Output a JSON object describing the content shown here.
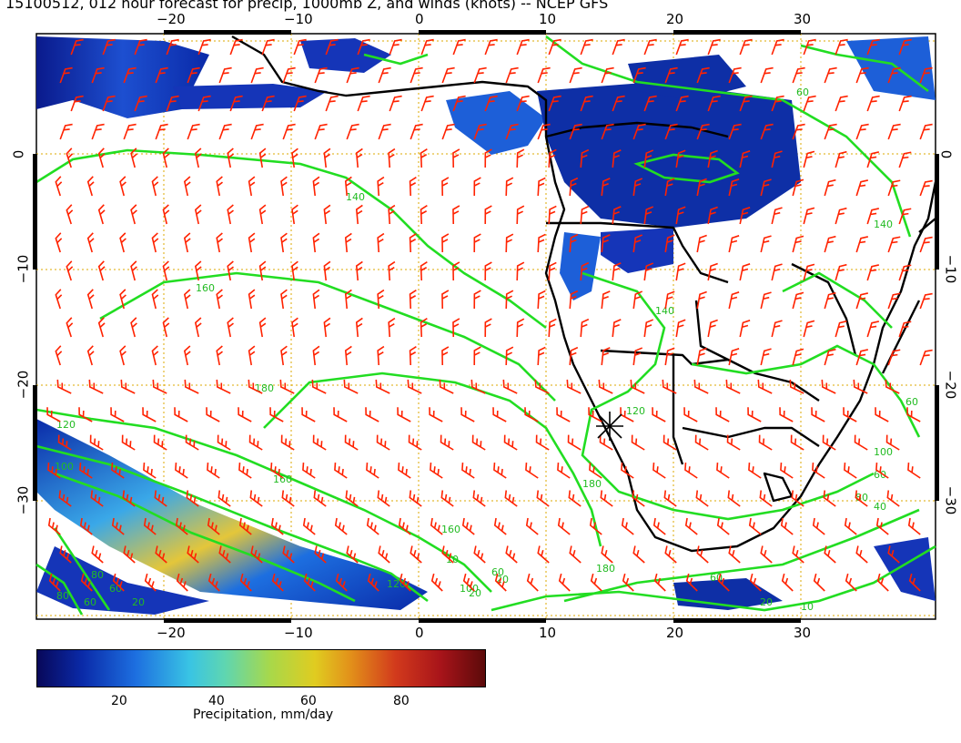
{
  "title": "15100512, 012 hour forecast for precip, 1000mb Z, and winds (knots) -- NCEP GFS",
  "map": {
    "lon_ticks": [
      "−20",
      "−10",
      "0",
      "10",
      "20",
      "30"
    ],
    "lat_ticks": [
      "0",
      "−10",
      "−20",
      "−30"
    ],
    "contour_labels": [
      "140",
      "160",
      "180",
      "120",
      "100",
      "80",
      "60",
      "20",
      "10",
      "120",
      "140",
      "180",
      "160",
      "180",
      "20",
      "60",
      "20",
      "10",
      "140",
      "20",
      "60",
      "80",
      "100",
      "120",
      "100",
      "40",
      "60",
      "80",
      "160",
      "60",
      "60",
      "60"
    ],
    "colors": {
      "land": "#ffffff",
      "coast": "#000000",
      "contour": "#22dd22",
      "barb": "#ff0000",
      "grid": "#ddaa00"
    }
  },
  "colorbar": {
    "tick_labels": [
      "20",
      "40",
      "60",
      "80"
    ],
    "title": "Precipitation, mm/day"
  }
}
